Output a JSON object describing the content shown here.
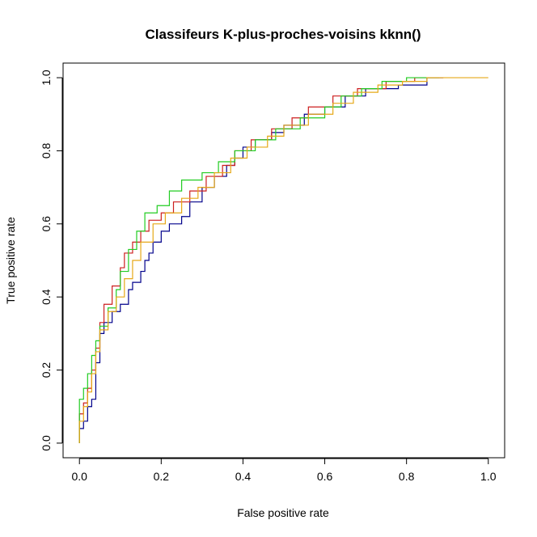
{
  "chart_data": {
    "type": "line",
    "title": "Classifeurs K-plus-proches-voisins kknn()",
    "xlabel": "False positive rate",
    "ylabel": "True positive rate",
    "xlim": [
      -0.04,
      1.04
    ],
    "ylim": [
      -0.04,
      1.04
    ],
    "x_ticks": [
      "0.0",
      "0.2",
      "0.4",
      "0.6",
      "0.8",
      "1.0"
    ],
    "y_ticks": [
      "0.0",
      "0.2",
      "0.4",
      "0.6",
      "0.8",
      "1.0"
    ],
    "grid": false,
    "legend": "none",
    "series": [
      {
        "color": "#00008B",
        "points": [
          [
            0,
            0
          ],
          [
            0,
            0.04
          ],
          [
            0.01,
            0.04
          ],
          [
            0.01,
            0.06
          ],
          [
            0.02,
            0.06
          ],
          [
            0.02,
            0.1
          ],
          [
            0.03,
            0.1
          ],
          [
            0.03,
            0.12
          ],
          [
            0.04,
            0.12
          ],
          [
            0.04,
            0.22
          ],
          [
            0.05,
            0.22
          ],
          [
            0.05,
            0.3
          ],
          [
            0.06,
            0.3
          ],
          [
            0.06,
            0.33
          ],
          [
            0.08,
            0.33
          ],
          [
            0.08,
            0.36
          ],
          [
            0.1,
            0.36
          ],
          [
            0.1,
            0.38
          ],
          [
            0.12,
            0.38
          ],
          [
            0.12,
            0.42
          ],
          [
            0.13,
            0.42
          ],
          [
            0.13,
            0.44
          ],
          [
            0.15,
            0.44
          ],
          [
            0.15,
            0.47
          ],
          [
            0.16,
            0.47
          ],
          [
            0.16,
            0.5
          ],
          [
            0.17,
            0.5
          ],
          [
            0.17,
            0.52
          ],
          [
            0.18,
            0.52
          ],
          [
            0.18,
            0.55
          ],
          [
            0.2,
            0.55
          ],
          [
            0.2,
            0.58
          ],
          [
            0.22,
            0.58
          ],
          [
            0.22,
            0.6
          ],
          [
            0.25,
            0.6
          ],
          [
            0.25,
            0.62
          ],
          [
            0.27,
            0.62
          ],
          [
            0.27,
            0.66
          ],
          [
            0.3,
            0.66
          ],
          [
            0.3,
            0.7
          ],
          [
            0.33,
            0.7
          ],
          [
            0.33,
            0.73
          ],
          [
            0.36,
            0.73
          ],
          [
            0.36,
            0.76
          ],
          [
            0.38,
            0.76
          ],
          [
            0.38,
            0.78
          ],
          [
            0.4,
            0.78
          ],
          [
            0.4,
            0.81
          ],
          [
            0.43,
            0.81
          ],
          [
            0.43,
            0.83
          ],
          [
            0.47,
            0.83
          ],
          [
            0.47,
            0.85
          ],
          [
            0.5,
            0.85
          ],
          [
            0.5,
            0.87
          ],
          [
            0.55,
            0.87
          ],
          [
            0.55,
            0.9
          ],
          [
            0.6,
            0.9
          ],
          [
            0.6,
            0.92
          ],
          [
            0.65,
            0.92
          ],
          [
            0.65,
            0.95
          ],
          [
            0.7,
            0.95
          ],
          [
            0.7,
            0.97
          ],
          [
            0.78,
            0.97
          ],
          [
            0.78,
            0.98
          ],
          [
            0.85,
            0.98
          ],
          [
            0.85,
            1.0
          ],
          [
            0.89,
            1.0
          ]
        ]
      },
      {
        "color": "#CC1F1F",
        "points": [
          [
            0,
            0
          ],
          [
            0,
            0.08
          ],
          [
            0.01,
            0.08
          ],
          [
            0.01,
            0.11
          ],
          [
            0.02,
            0.11
          ],
          [
            0.02,
            0.15
          ],
          [
            0.03,
            0.15
          ],
          [
            0.03,
            0.2
          ],
          [
            0.04,
            0.2
          ],
          [
            0.04,
            0.26
          ],
          [
            0.05,
            0.26
          ],
          [
            0.05,
            0.33
          ],
          [
            0.06,
            0.33
          ],
          [
            0.06,
            0.38
          ],
          [
            0.08,
            0.38
          ],
          [
            0.08,
            0.43
          ],
          [
            0.1,
            0.43
          ],
          [
            0.1,
            0.48
          ],
          [
            0.11,
            0.48
          ],
          [
            0.11,
            0.52
          ],
          [
            0.13,
            0.52
          ],
          [
            0.13,
            0.55
          ],
          [
            0.15,
            0.55
          ],
          [
            0.15,
            0.58
          ],
          [
            0.17,
            0.58
          ],
          [
            0.17,
            0.61
          ],
          [
            0.2,
            0.61
          ],
          [
            0.2,
            0.63
          ],
          [
            0.23,
            0.63
          ],
          [
            0.23,
            0.66
          ],
          [
            0.27,
            0.66
          ],
          [
            0.27,
            0.69
          ],
          [
            0.31,
            0.69
          ],
          [
            0.31,
            0.73
          ],
          [
            0.35,
            0.73
          ],
          [
            0.35,
            0.76
          ],
          [
            0.38,
            0.76
          ],
          [
            0.38,
            0.8
          ],
          [
            0.42,
            0.8
          ],
          [
            0.42,
            0.83
          ],
          [
            0.47,
            0.83
          ],
          [
            0.47,
            0.86
          ],
          [
            0.52,
            0.86
          ],
          [
            0.52,
            0.89
          ],
          [
            0.56,
            0.89
          ],
          [
            0.56,
            0.92
          ],
          [
            0.62,
            0.92
          ],
          [
            0.62,
            0.95
          ],
          [
            0.68,
            0.95
          ],
          [
            0.68,
            0.97
          ],
          [
            0.75,
            0.97
          ],
          [
            0.75,
            0.99
          ],
          [
            0.82,
            0.99
          ],
          [
            0.82,
            1.0
          ],
          [
            0.89,
            1.0
          ]
        ]
      },
      {
        "color": "#22CC22",
        "points": [
          [
            0,
            0
          ],
          [
            0,
            0.12
          ],
          [
            0.01,
            0.12
          ],
          [
            0.01,
            0.15
          ],
          [
            0.02,
            0.15
          ],
          [
            0.02,
            0.19
          ],
          [
            0.03,
            0.19
          ],
          [
            0.03,
            0.24
          ],
          [
            0.04,
            0.24
          ],
          [
            0.04,
            0.28
          ],
          [
            0.05,
            0.28
          ],
          [
            0.05,
            0.32
          ],
          [
            0.07,
            0.32
          ],
          [
            0.07,
            0.37
          ],
          [
            0.09,
            0.37
          ],
          [
            0.09,
            0.42
          ],
          [
            0.1,
            0.42
          ],
          [
            0.1,
            0.47
          ],
          [
            0.12,
            0.47
          ],
          [
            0.12,
            0.53
          ],
          [
            0.14,
            0.53
          ],
          [
            0.14,
            0.58
          ],
          [
            0.16,
            0.58
          ],
          [
            0.16,
            0.63
          ],
          [
            0.19,
            0.63
          ],
          [
            0.19,
            0.65
          ],
          [
            0.22,
            0.65
          ],
          [
            0.22,
            0.69
          ],
          [
            0.25,
            0.69
          ],
          [
            0.25,
            0.72
          ],
          [
            0.3,
            0.72
          ],
          [
            0.3,
            0.74
          ],
          [
            0.34,
            0.74
          ],
          [
            0.34,
            0.77
          ],
          [
            0.38,
            0.77
          ],
          [
            0.38,
            0.8
          ],
          [
            0.43,
            0.8
          ],
          [
            0.43,
            0.83
          ],
          [
            0.48,
            0.83
          ],
          [
            0.48,
            0.86
          ],
          [
            0.54,
            0.86
          ],
          [
            0.54,
            0.89
          ],
          [
            0.6,
            0.89
          ],
          [
            0.6,
            0.92
          ],
          [
            0.64,
            0.92
          ],
          [
            0.64,
            0.95
          ],
          [
            0.69,
            0.95
          ],
          [
            0.69,
            0.97
          ],
          [
            0.74,
            0.97
          ],
          [
            0.74,
            0.99
          ],
          [
            0.8,
            0.99
          ],
          [
            0.8,
            1.0
          ],
          [
            0.88,
            1.0
          ]
        ]
      },
      {
        "color": "#E6A817",
        "points": [
          [
            0,
            0
          ],
          [
            0,
            0.06
          ],
          [
            0.01,
            0.06
          ],
          [
            0.01,
            0.1
          ],
          [
            0.02,
            0.1
          ],
          [
            0.02,
            0.14
          ],
          [
            0.03,
            0.14
          ],
          [
            0.03,
            0.19
          ],
          [
            0.04,
            0.19
          ],
          [
            0.04,
            0.25
          ],
          [
            0.05,
            0.25
          ],
          [
            0.05,
            0.31
          ],
          [
            0.07,
            0.31
          ],
          [
            0.07,
            0.36
          ],
          [
            0.09,
            0.36
          ],
          [
            0.09,
            0.4
          ],
          [
            0.11,
            0.4
          ],
          [
            0.11,
            0.45
          ],
          [
            0.13,
            0.45
          ],
          [
            0.13,
            0.5
          ],
          [
            0.15,
            0.5
          ],
          [
            0.15,
            0.55
          ],
          [
            0.18,
            0.55
          ],
          [
            0.18,
            0.6
          ],
          [
            0.21,
            0.6
          ],
          [
            0.21,
            0.63
          ],
          [
            0.25,
            0.63
          ],
          [
            0.25,
            0.67
          ],
          [
            0.29,
            0.67
          ],
          [
            0.29,
            0.7
          ],
          [
            0.33,
            0.7
          ],
          [
            0.33,
            0.74
          ],
          [
            0.37,
            0.74
          ],
          [
            0.37,
            0.78
          ],
          [
            0.41,
            0.78
          ],
          [
            0.41,
            0.81
          ],
          [
            0.46,
            0.81
          ],
          [
            0.46,
            0.84
          ],
          [
            0.5,
            0.84
          ],
          [
            0.5,
            0.87
          ],
          [
            0.56,
            0.87
          ],
          [
            0.56,
            0.9
          ],
          [
            0.62,
            0.9
          ],
          [
            0.62,
            0.93
          ],
          [
            0.67,
            0.93
          ],
          [
            0.67,
            0.96
          ],
          [
            0.73,
            0.96
          ],
          [
            0.73,
            0.98
          ],
          [
            0.79,
            0.98
          ],
          [
            0.79,
            0.99
          ],
          [
            0.85,
            0.99
          ],
          [
            0.85,
            1.0
          ],
          [
            1.0,
            1.0
          ]
        ]
      }
    ]
  }
}
